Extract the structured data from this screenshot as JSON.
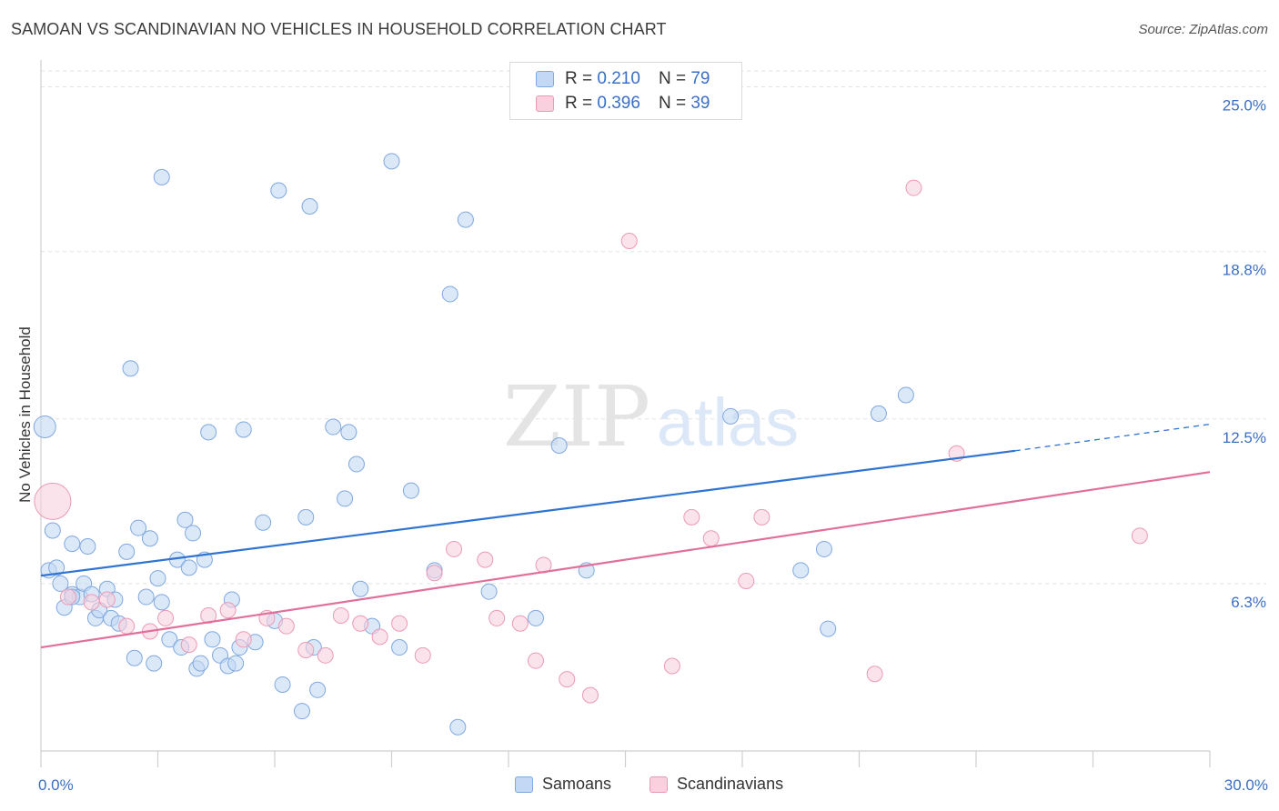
{
  "title": "SAMOAN VS SCANDINAVIAN NO VEHICLES IN HOUSEHOLD CORRELATION CHART",
  "source": "Source: ZipAtlas.com",
  "watermark": {
    "part1": "ZIP",
    "part2": "atlas"
  },
  "legend": {
    "rows": [
      {
        "r_label": "R =",
        "r_value": "0.210",
        "n_label": "N =",
        "n_value": "79",
        "color": "#a9c8f0"
      },
      {
        "r_label": "R =",
        "r_value": "0.396",
        "n_label": "N =",
        "n_value": "39",
        "color": "#f6bcd0"
      }
    ]
  },
  "bottom_legend": [
    {
      "label": "Samoans",
      "color": "#a9c8f0"
    },
    {
      "label": "Scandinavians",
      "color": "#f6bcd0"
    }
  ],
  "chart_data": {
    "type": "scatter",
    "xlabel": "",
    "ylabel": "No Vehicles in Household",
    "xlim": [
      0,
      30
    ],
    "ylim": [
      0,
      25.6
    ],
    "x_tick_labels": [
      {
        "value": 0,
        "label": "0.0%"
      },
      {
        "value": 30,
        "label": "30.0%"
      }
    ],
    "y_tick_labels": [
      {
        "value": 6.3,
        "label": "6.3%"
      },
      {
        "value": 12.5,
        "label": "12.5%"
      },
      {
        "value": 18.8,
        "label": "18.8%"
      },
      {
        "value": 25.0,
        "label": "25.0%"
      }
    ],
    "grid": {
      "horizontal": true,
      "style": "dashed"
    },
    "colors": {
      "samoans": "#a9c8f0",
      "samoans_line": "#2f74d0",
      "scandinavians": "#f6bcd0",
      "scandinavians_line": "#e0709a",
      "tick_label": "#3a6fc4"
    },
    "series": [
      {
        "name": "Samoans",
        "regression": {
          "x": [
            0,
            25
          ],
          "y": [
            6.6,
            11.3
          ],
          "dashed_extension_to": [
            30,
            12.3
          ]
        },
        "points": [
          [
            0.1,
            12.2,
            2
          ],
          [
            0.3,
            8.3,
            1
          ],
          [
            0.2,
            6.8,
            1
          ],
          [
            0.4,
            6.9,
            1
          ],
          [
            0.5,
            6.3,
            1
          ],
          [
            0.6,
            5.4,
            1
          ],
          [
            0.8,
            5.9,
            1
          ],
          [
            0.8,
            7.8,
            1
          ],
          [
            1.0,
            5.8,
            1
          ],
          [
            1.1,
            6.3,
            1
          ],
          [
            1.2,
            7.7,
            1
          ],
          [
            1.3,
            5.9,
            1
          ],
          [
            1.4,
            5.0,
            1
          ],
          [
            1.5,
            5.3,
            1
          ],
          [
            1.7,
            6.1,
            1
          ],
          [
            1.8,
            5.0,
            1
          ],
          [
            1.9,
            5.7,
            1
          ],
          [
            2.0,
            4.8,
            1
          ],
          [
            2.2,
            7.5,
            1
          ],
          [
            2.3,
            14.4,
            1
          ],
          [
            2.4,
            3.5,
            1
          ],
          [
            2.5,
            8.4,
            1
          ],
          [
            2.7,
            5.8,
            1
          ],
          [
            2.8,
            8.0,
            1
          ],
          [
            2.9,
            3.3,
            1
          ],
          [
            3.0,
            6.5,
            1
          ],
          [
            3.1,
            5.6,
            1
          ],
          [
            3.1,
            21.6,
            1
          ],
          [
            3.3,
            4.2,
            1
          ],
          [
            3.5,
            7.2,
            1
          ],
          [
            3.6,
            3.9,
            1
          ],
          [
            3.7,
            8.7,
            1
          ],
          [
            3.8,
            6.9,
            1
          ],
          [
            3.9,
            8.2,
            1
          ],
          [
            4.0,
            3.1,
            1
          ],
          [
            4.1,
            3.3,
            1
          ],
          [
            4.2,
            7.2,
            1
          ],
          [
            4.3,
            12.0,
            1
          ],
          [
            4.4,
            4.2,
            1
          ],
          [
            4.6,
            3.6,
            1
          ],
          [
            4.8,
            3.2,
            1
          ],
          [
            4.9,
            5.7,
            1
          ],
          [
            5.0,
            3.3,
            1
          ],
          [
            5.1,
            3.9,
            1
          ],
          [
            5.2,
            12.1,
            1
          ],
          [
            5.5,
            4.1,
            1
          ],
          [
            5.7,
            8.6,
            1
          ],
          [
            6.0,
            4.9,
            1
          ],
          [
            6.1,
            21.1,
            1
          ],
          [
            6.2,
            2.5,
            1
          ],
          [
            6.7,
            1.5,
            1
          ],
          [
            6.8,
            8.8,
            1
          ],
          [
            6.9,
            20.5,
            1
          ],
          [
            7.0,
            3.9,
            1
          ],
          [
            7.1,
            2.3,
            1
          ],
          [
            7.5,
            12.2,
            1
          ],
          [
            7.9,
            12.0,
            1
          ],
          [
            8.1,
            10.8,
            1
          ],
          [
            7.8,
            9.5,
            1
          ],
          [
            8.2,
            6.1,
            1
          ],
          [
            8.5,
            4.7,
            1
          ],
          [
            9.0,
            22.2,
            1
          ],
          [
            9.2,
            3.9,
            1
          ],
          [
            9.5,
            9.8,
            1
          ],
          [
            10.1,
            6.8,
            1
          ],
          [
            10.5,
            17.2,
            1
          ],
          [
            10.7,
            0.9,
            1
          ],
          [
            10.9,
            20.0,
            1
          ],
          [
            11.5,
            6.0,
            1
          ],
          [
            12.7,
            5.0,
            1
          ],
          [
            13.3,
            11.5,
            1
          ],
          [
            14.0,
            6.8,
            1
          ],
          [
            17.7,
            12.6,
            1
          ],
          [
            19.5,
            6.8,
            1
          ],
          [
            20.1,
            7.6,
            1
          ],
          [
            20.2,
            4.6,
            1
          ],
          [
            21.5,
            12.7,
            1
          ],
          [
            22.2,
            13.4,
            1
          ],
          [
            0.8,
            5.8,
            1
          ]
        ]
      },
      {
        "name": "Scandinavians",
        "regression": {
          "x": [
            0,
            30
          ],
          "y": [
            3.9,
            10.5
          ]
        },
        "points": [
          [
            0.3,
            9.4,
            3
          ],
          [
            0.7,
            5.8,
            1
          ],
          [
            1.3,
            5.6,
            1
          ],
          [
            1.7,
            5.7,
            1
          ],
          [
            2.2,
            4.7,
            1
          ],
          [
            2.8,
            4.5,
            1
          ],
          [
            3.2,
            5.0,
            1
          ],
          [
            3.8,
            4.0,
            1
          ],
          [
            4.3,
            5.1,
            1
          ],
          [
            4.8,
            5.3,
            1
          ],
          [
            5.2,
            4.2,
            1
          ],
          [
            5.8,
            5.0,
            1
          ],
          [
            6.3,
            4.7,
            1
          ],
          [
            6.8,
            3.8,
            1
          ],
          [
            7.3,
            3.6,
            1
          ],
          [
            7.7,
            5.1,
            1
          ],
          [
            8.2,
            4.8,
            1
          ],
          [
            8.7,
            4.3,
            1
          ],
          [
            9.2,
            4.8,
            1
          ],
          [
            9.8,
            3.6,
            1
          ],
          [
            10.1,
            6.7,
            1
          ],
          [
            10.6,
            7.6,
            1
          ],
          [
            11.4,
            7.2,
            1
          ],
          [
            11.7,
            5.0,
            1
          ],
          [
            12.3,
            4.8,
            1
          ],
          [
            12.7,
            3.4,
            1
          ],
          [
            12.9,
            7.0,
            1
          ],
          [
            13.5,
            2.7,
            1
          ],
          [
            14.1,
            2.1,
            1
          ],
          [
            15.1,
            19.2,
            1
          ],
          [
            16.2,
            3.2,
            1
          ],
          [
            16.7,
            8.8,
            1
          ],
          [
            17.2,
            8.0,
            1
          ],
          [
            18.1,
            6.4,
            1
          ],
          [
            18.5,
            8.8,
            1
          ],
          [
            21.4,
            2.9,
            1
          ],
          [
            22.4,
            21.2,
            1
          ],
          [
            23.5,
            11.2,
            1
          ],
          [
            28.2,
            8.1,
            1
          ]
        ]
      }
    ]
  }
}
